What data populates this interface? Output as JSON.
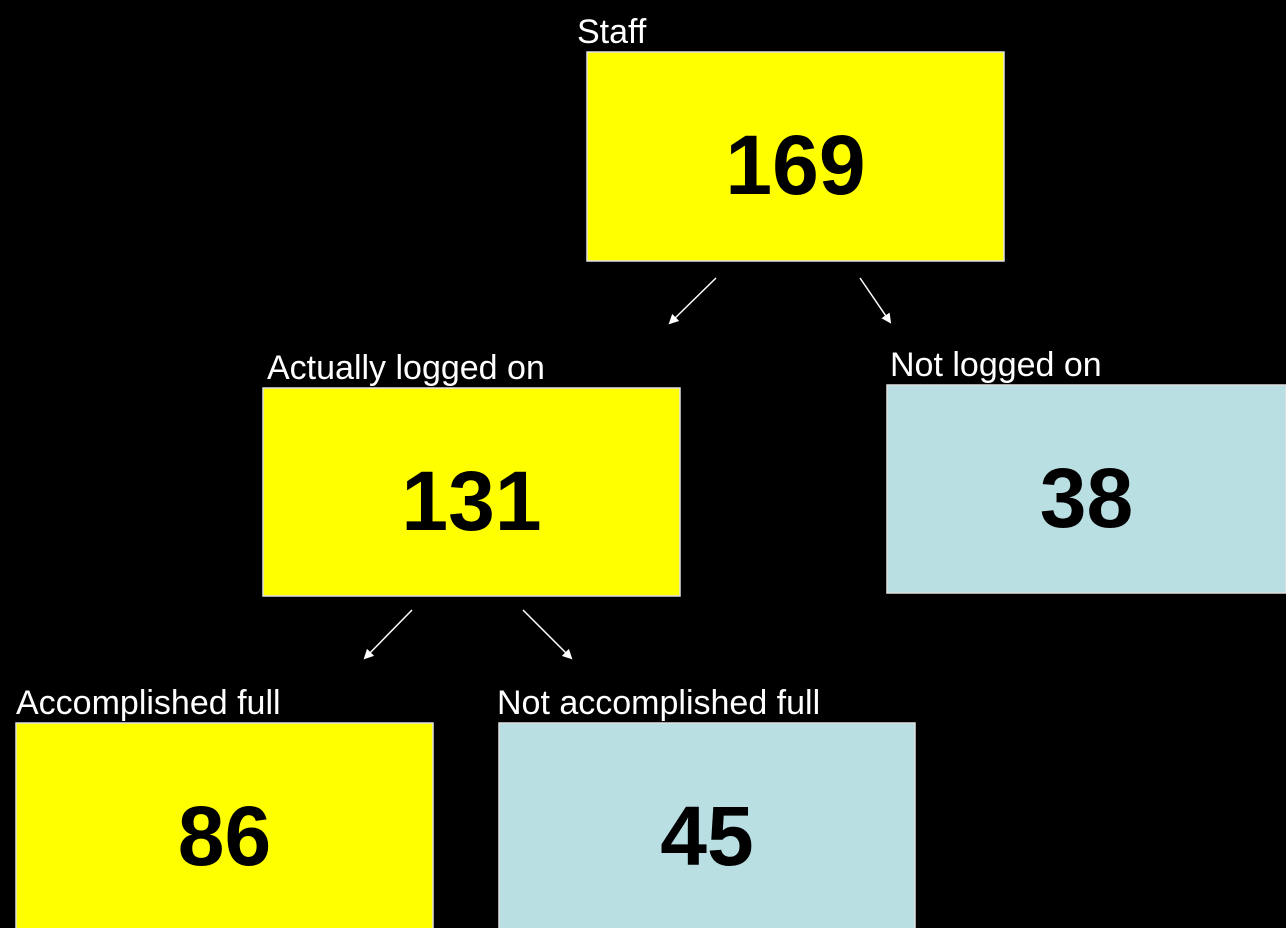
{
  "nodes": [
    {
      "label": "Staff",
      "value": 169,
      "color": "#ffff00"
    },
    {
      "label": "Actually logged on",
      "value": 131,
      "color": "#ffff00"
    },
    {
      "label": "Not logged on",
      "value": 38,
      "color": "#b9dfe3"
    },
    {
      "label": "Accomplished full",
      "value": 86,
      "color": "#ffff00"
    },
    {
      "label": "Not accomplished full",
      "value": 45,
      "color": "#b9dfe3"
    }
  ]
}
